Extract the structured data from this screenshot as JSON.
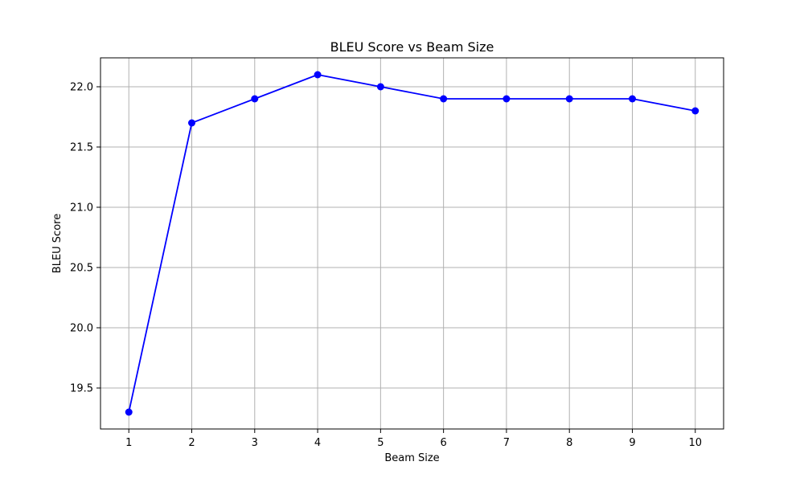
{
  "chart_data": {
    "type": "line",
    "title": "BLEU Score vs Beam Size",
    "xlabel": "Beam Size",
    "ylabel": "BLEU Score",
    "x": [
      1,
      2,
      3,
      4,
      5,
      6,
      7,
      8,
      9,
      10
    ],
    "series": [
      {
        "values": [
          19.3,
          21.7,
          21.9,
          22.1,
          22.0,
          21.9,
          21.9,
          21.9,
          21.9,
          21.8
        ]
      }
    ],
    "xticks": [
      1,
      2,
      3,
      4,
      5,
      6,
      7,
      8,
      9,
      10
    ],
    "yticks": [
      19.5,
      20.0,
      20.5,
      21.0,
      21.5,
      22.0
    ],
    "ytick_labels": [
      "19.5",
      "20.0",
      "20.5",
      "21.0",
      "21.5",
      "22.0"
    ],
    "xlim": [
      0.55,
      10.45
    ],
    "ylim": [
      19.16,
      22.24
    ],
    "grid": true,
    "line_color": "#0000ff",
    "marker": "circle"
  }
}
